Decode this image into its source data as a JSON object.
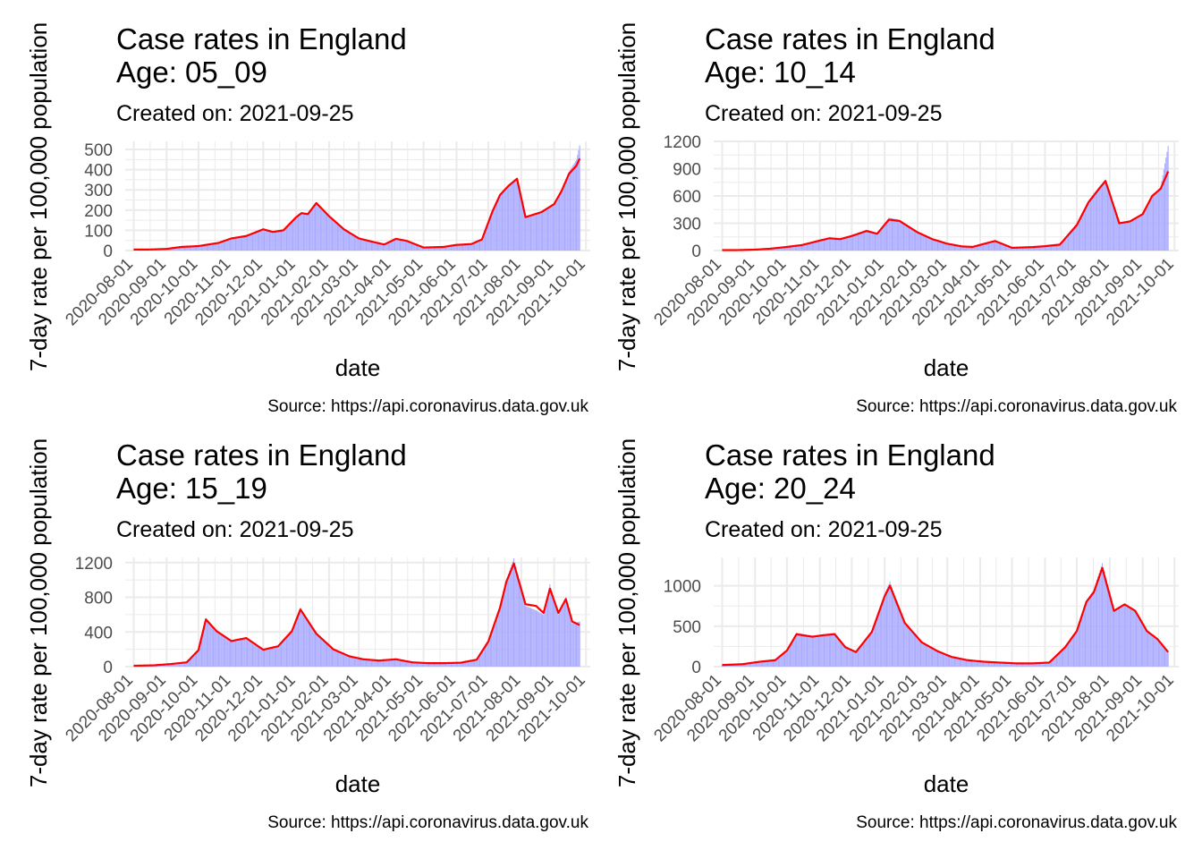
{
  "colors": {
    "bar_fill": "#aaaaff",
    "line": "#ff0000",
    "grid": "#ebebeb"
  },
  "chart_data": [
    {
      "type": "bar+line",
      "title_line1": "Case rates in England",
      "title_line2": "Age:  05_09",
      "subtitle": "Created on:  2021-09-25",
      "xlabel": "date",
      "ylabel": "7-day rate per 100,000 population",
      "caption": "Source: https://api.coronavirus.data.gov.uk",
      "x_ticks": [
        "2020-08-01",
        "2020-09-01",
        "2020-10-01",
        "2020-11-01",
        "2020-12-01",
        "2021-01-01",
        "2021-02-01",
        "2021-03-01",
        "2021-04-01",
        "2021-05-01",
        "2021-06-01",
        "2021-07-01",
        "2021-08-01",
        "2021-09-01",
        "2021-10-01"
      ],
      "y_ticks": [
        0,
        100,
        200,
        300,
        400,
        500
      ],
      "ylim": [
        0,
        540
      ],
      "x_domain": [
        "2020-07-24",
        "2021-10-05"
      ],
      "x_range": [
        "2020-08-01",
        "2021-09-25"
      ],
      "grid": true,
      "series": [
        {
          "kind": "bar",
          "x": [
            "2020-08-01",
            "2020-08-15",
            "2020-09-01",
            "2020-09-15",
            "2020-10-01",
            "2020-10-20",
            "2020-11-01",
            "2020-11-15",
            "2020-12-01",
            "2020-12-10",
            "2020-12-20",
            "2021-01-01",
            "2021-01-06",
            "2021-01-12",
            "2021-01-20",
            "2021-02-01",
            "2021-02-15",
            "2021-03-01",
            "2021-03-15",
            "2021-03-25",
            "2021-04-05",
            "2021-04-15",
            "2021-05-01",
            "2021-05-20",
            "2021-06-01",
            "2021-06-15",
            "2021-06-25",
            "2021-07-05",
            "2021-07-12",
            "2021-07-20",
            "2021-07-28",
            "2021-08-05",
            "2021-08-20",
            "2021-09-01",
            "2021-09-08",
            "2021-09-15",
            "2021-09-22",
            "2021-09-25"
          ],
          "y": [
            5,
            5,
            8,
            20,
            25,
            40,
            60,
            75,
            110,
            95,
            105,
            170,
            190,
            185,
            240,
            175,
            110,
            65,
            45,
            30,
            60,
            50,
            15,
            20,
            30,
            35,
            60,
            200,
            280,
            325,
            360,
            160,
            190,
            230,
            300,
            390,
            450,
            520
          ]
        },
        {
          "kind": "line",
          "x": [
            "2020-08-01",
            "2020-08-15",
            "2020-09-01",
            "2020-09-15",
            "2020-10-01",
            "2020-10-20",
            "2020-11-01",
            "2020-11-15",
            "2020-12-01",
            "2020-12-10",
            "2020-12-20",
            "2021-01-01",
            "2021-01-06",
            "2021-01-12",
            "2021-01-20",
            "2021-02-01",
            "2021-02-15",
            "2021-03-01",
            "2021-03-15",
            "2021-03-25",
            "2021-04-05",
            "2021-04-15",
            "2021-05-01",
            "2021-05-20",
            "2021-06-01",
            "2021-06-15",
            "2021-06-25",
            "2021-07-05",
            "2021-07-12",
            "2021-07-20",
            "2021-07-28",
            "2021-08-05",
            "2021-08-20",
            "2021-09-01",
            "2021-09-08",
            "2021-09-15",
            "2021-09-22",
            "2021-09-25"
          ],
          "y": [
            5,
            5,
            8,
            18,
            22,
            38,
            60,
            72,
            105,
            92,
            100,
            165,
            185,
            180,
            235,
            170,
            105,
            60,
            42,
            30,
            58,
            48,
            15,
            18,
            28,
            32,
            55,
            195,
            275,
            320,
            355,
            165,
            190,
            230,
            295,
            380,
            420,
            455
          ]
        }
      ]
    },
    {
      "type": "bar+line",
      "title_line1": "Case rates in England",
      "title_line2": "Age:  10_14",
      "subtitle": "Created on:  2021-09-25",
      "xlabel": "date",
      "ylabel": "7-day rate per 100,000 population",
      "caption": "Source: https://api.coronavirus.data.gov.uk",
      "x_ticks": [
        "2020-08-01",
        "2020-09-01",
        "2020-10-01",
        "2020-11-01",
        "2020-12-01",
        "2021-01-01",
        "2021-02-01",
        "2021-03-01",
        "2021-04-01",
        "2021-05-01",
        "2021-06-01",
        "2021-07-01",
        "2021-08-01",
        "2021-09-01",
        "2021-10-01"
      ],
      "y_ticks": [
        0,
        300,
        600,
        900,
        1200
      ],
      "ylim": [
        0,
        1200
      ],
      "x_domain": [
        "2020-07-24",
        "2021-10-05"
      ],
      "x_range": [
        "2020-08-01",
        "2021-09-25"
      ],
      "grid": true,
      "series": [
        {
          "kind": "bar",
          "x": [
            "2020-08-01",
            "2020-08-15",
            "2020-09-01",
            "2020-09-15",
            "2020-10-01",
            "2020-10-15",
            "2020-11-01",
            "2020-11-10",
            "2020-11-20",
            "2020-12-01",
            "2020-12-15",
            "2020-12-25",
            "2021-01-05",
            "2021-01-15",
            "2021-02-01",
            "2021-02-15",
            "2021-03-01",
            "2021-03-15",
            "2021-03-25",
            "2021-04-05",
            "2021-04-15",
            "2021-05-01",
            "2021-05-20",
            "2021-06-01",
            "2021-06-15",
            "2021-07-01",
            "2021-07-12",
            "2021-07-22",
            "2021-07-28",
            "2021-08-10",
            "2021-08-20",
            "2021-09-01",
            "2021-09-10",
            "2021-09-18",
            "2021-09-25"
          ],
          "y": [
            5,
            5,
            10,
            20,
            40,
            60,
            110,
            140,
            130,
            170,
            230,
            190,
            360,
            340,
            210,
            130,
            80,
            45,
            40,
            80,
            110,
            30,
            40,
            50,
            70,
            300,
            550,
            700,
            780,
            290,
            320,
            400,
            600,
            700,
            1150
          ]
        },
        {
          "kind": "line",
          "x": [
            "2020-08-01",
            "2020-08-15",
            "2020-09-01",
            "2020-09-15",
            "2020-10-01",
            "2020-10-15",
            "2020-11-01",
            "2020-11-10",
            "2020-11-20",
            "2020-12-01",
            "2020-12-15",
            "2020-12-25",
            "2021-01-05",
            "2021-01-15",
            "2021-02-01",
            "2021-02-15",
            "2021-03-01",
            "2021-03-15",
            "2021-03-25",
            "2021-04-05",
            "2021-04-15",
            "2021-05-01",
            "2021-05-20",
            "2021-06-01",
            "2021-06-15",
            "2021-07-01",
            "2021-07-12",
            "2021-07-22",
            "2021-07-28",
            "2021-08-10",
            "2021-08-20",
            "2021-09-01",
            "2021-09-10",
            "2021-09-18",
            "2021-09-25"
          ],
          "y": [
            5,
            5,
            10,
            20,
            40,
            60,
            110,
            135,
            125,
            160,
            215,
            185,
            340,
            325,
            200,
            125,
            75,
            45,
            40,
            75,
            105,
            30,
            38,
            48,
            65,
            280,
            530,
            680,
            765,
            300,
            320,
            400,
            600,
            680,
            870
          ]
        }
      ]
    },
    {
      "type": "bar+line",
      "title_line1": "Case rates in England",
      "title_line2": "Age:  15_19",
      "subtitle": "Created on:  2021-09-25",
      "xlabel": "date",
      "ylabel": "7-day rate per 100,000 population",
      "caption": "Source: https://api.coronavirus.data.gov.uk",
      "x_ticks": [
        "2020-08-01",
        "2020-09-01",
        "2020-10-01",
        "2020-11-01",
        "2020-12-01",
        "2021-01-01",
        "2021-02-01",
        "2021-03-01",
        "2021-04-01",
        "2021-05-01",
        "2021-06-01",
        "2021-07-01",
        "2021-08-01",
        "2021-09-01",
        "2021-10-01"
      ],
      "y_ticks": [
        0,
        400,
        800,
        1200
      ],
      "ylim": [
        0,
        1260
      ],
      "x_domain": [
        "2020-07-24",
        "2021-10-05"
      ],
      "x_range": [
        "2020-08-01",
        "2021-09-25"
      ],
      "grid": true,
      "series": [
        {
          "kind": "bar",
          "x": [
            "2020-08-01",
            "2020-08-20",
            "2020-09-05",
            "2020-09-20",
            "2020-10-01",
            "2020-10-08",
            "2020-10-18",
            "2020-11-01",
            "2020-11-15",
            "2020-12-01",
            "2020-12-15",
            "2020-12-28",
            "2021-01-05",
            "2021-01-20",
            "2021-02-05",
            "2021-02-20",
            "2021-03-05",
            "2021-03-20",
            "2021-04-05",
            "2021-04-20",
            "2021-05-05",
            "2021-05-20",
            "2021-06-05",
            "2021-06-20",
            "2021-07-01",
            "2021-07-12",
            "2021-07-18",
            "2021-07-25",
            "2021-08-05",
            "2021-08-15",
            "2021-08-22",
            "2021-08-28",
            "2021-09-05",
            "2021-09-12",
            "2021-09-18",
            "2021-09-25"
          ],
          "y": [
            10,
            15,
            30,
            50,
            200,
            560,
            420,
            300,
            340,
            200,
            240,
            420,
            680,
            380,
            200,
            120,
            90,
            70,
            90,
            50,
            40,
            40,
            45,
            80,
            300,
            700,
            1000,
            1250,
            700,
            650,
            600,
            950,
            600,
            800,
            500,
            520
          ]
        },
        {
          "kind": "line",
          "x": [
            "2020-08-01",
            "2020-08-20",
            "2020-09-05",
            "2020-09-20",
            "2020-10-01",
            "2020-10-08",
            "2020-10-18",
            "2020-11-01",
            "2020-11-15",
            "2020-12-01",
            "2020-12-15",
            "2020-12-28",
            "2021-01-05",
            "2021-01-20",
            "2021-02-05",
            "2021-02-20",
            "2021-03-05",
            "2021-03-20",
            "2021-04-05",
            "2021-04-20",
            "2021-05-05",
            "2021-05-20",
            "2021-06-05",
            "2021-06-20",
            "2021-07-01",
            "2021-07-12",
            "2021-07-18",
            "2021-07-25",
            "2021-08-05",
            "2021-08-15",
            "2021-08-22",
            "2021-08-28",
            "2021-09-05",
            "2021-09-12",
            "2021-09-18",
            "2021-09-25"
          ],
          "y": [
            10,
            15,
            30,
            50,
            190,
            545,
            410,
            295,
            330,
            195,
            235,
            410,
            660,
            380,
            200,
            120,
            85,
            70,
            85,
            50,
            40,
            40,
            45,
            80,
            290,
            680,
            980,
            1190,
            720,
            700,
            620,
            900,
            620,
            780,
            520,
            480
          ]
        }
      ]
    },
    {
      "type": "bar+line",
      "title_line1": "Case rates in England",
      "title_line2": "Age:  20_24",
      "subtitle": "Created on:  2021-09-25",
      "xlabel": "date",
      "ylabel": "7-day rate per 100,000 population",
      "caption": "Source: https://api.coronavirus.data.gov.uk",
      "x_ticks": [
        "2020-08-01",
        "2020-09-01",
        "2020-10-01",
        "2020-11-01",
        "2020-12-01",
        "2021-01-01",
        "2021-02-01",
        "2021-03-01",
        "2021-04-01",
        "2021-05-01",
        "2021-06-01",
        "2021-07-01",
        "2021-08-01",
        "2021-09-01",
        "2021-10-01"
      ],
      "y_ticks": [
        0,
        500,
        1000
      ],
      "ylim": [
        0,
        1350
      ],
      "x_domain": [
        "2020-07-24",
        "2021-10-05"
      ],
      "x_range": [
        "2020-08-01",
        "2021-09-25"
      ],
      "grid": true,
      "series": [
        {
          "kind": "bar",
          "x": [
            "2020-08-01",
            "2020-08-20",
            "2020-09-05",
            "2020-09-20",
            "2020-10-01",
            "2020-10-10",
            "2020-10-25",
            "2020-11-05",
            "2020-11-15",
            "2020-11-25",
            "2020-12-05",
            "2020-12-20",
            "2021-01-01",
            "2021-01-06",
            "2021-01-20",
            "2021-02-05",
            "2021-02-20",
            "2021-03-05",
            "2021-03-20",
            "2021-04-05",
            "2021-04-20",
            "2021-05-05",
            "2021-05-20",
            "2021-06-05",
            "2021-06-20",
            "2021-07-01",
            "2021-07-10",
            "2021-07-17",
            "2021-07-25",
            "2021-08-05",
            "2021-08-15",
            "2021-08-25",
            "2021-09-05",
            "2021-09-15",
            "2021-09-25"
          ],
          "y": [
            20,
            30,
            60,
            80,
            200,
            420,
            380,
            400,
            420,
            250,
            180,
            450,
            900,
            1050,
            550,
            300,
            200,
            120,
            80,
            60,
            50,
            40,
            40,
            50,
            250,
            450,
            820,
            950,
            1280,
            700,
            780,
            700,
            450,
            350,
            180
          ]
        },
        {
          "kind": "line",
          "x": [
            "2020-08-01",
            "2020-08-20",
            "2020-09-05",
            "2020-09-20",
            "2020-10-01",
            "2020-10-10",
            "2020-10-25",
            "2020-11-05",
            "2020-11-15",
            "2020-11-25",
            "2020-12-05",
            "2020-12-20",
            "2021-01-01",
            "2021-01-06",
            "2021-01-20",
            "2021-02-05",
            "2021-02-20",
            "2021-03-05",
            "2021-03-20",
            "2021-04-05",
            "2021-04-20",
            "2021-05-05",
            "2021-05-20",
            "2021-06-05",
            "2021-06-20",
            "2021-07-01",
            "2021-07-10",
            "2021-07-17",
            "2021-07-25",
            "2021-08-05",
            "2021-08-15",
            "2021-08-25",
            "2021-09-05",
            "2021-09-15",
            "2021-09-25"
          ],
          "y": [
            20,
            30,
            60,
            80,
            200,
            400,
            370,
            390,
            400,
            240,
            180,
            430,
            870,
            1000,
            540,
            300,
            190,
            120,
            80,
            60,
            50,
            40,
            40,
            50,
            240,
            440,
            800,
            920,
            1220,
            690,
            770,
            690,
            440,
            340,
            180
          ]
        }
      ]
    }
  ]
}
